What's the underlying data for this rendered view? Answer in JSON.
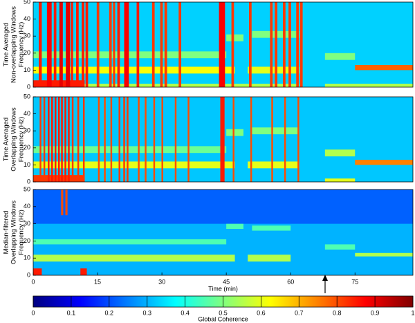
{
  "chart_data": [
    {
      "type": "heatmap",
      "colormap": "jet",
      "ylabel": [
        "Time Averaged",
        "Non-overlapping Windows",
        "Frequency (Hz)"
      ],
      "xlim": [
        0,
        88.5
      ],
      "ylim": [
        0,
        50
      ],
      "yticks": [
        0,
        10,
        20,
        30,
        40,
        50
      ],
      "background": 0.33,
      "patches": [
        {
          "x": [
            0,
            47
          ],
          "y": [
            8,
            12
          ],
          "value": 0.62
        },
        {
          "x": [
            50,
            62
          ],
          "y": [
            8,
            12
          ],
          "value": 0.6
        },
        {
          "x": [
            0,
            45
          ],
          "y": [
            17,
            21
          ],
          "value": 0.5
        },
        {
          "x": [
            0,
            62
          ],
          "y": [
            0,
            2
          ],
          "value": 0.55
        },
        {
          "x": [
            0,
            12
          ],
          "y": [
            0,
            4
          ],
          "value": 0.85
        },
        {
          "x": [
            45,
            49
          ],
          "y": [
            27,
            31
          ],
          "value": 0.5
        },
        {
          "x": [
            51,
            62
          ],
          "y": [
            29,
            33
          ],
          "value": 0.5
        },
        {
          "x": [
            68,
            75
          ],
          "y": [
            16,
            20
          ],
          "value": 0.5
        },
        {
          "x": [
            75,
            88.5
          ],
          "y": [
            10,
            13
          ],
          "value": 0.78
        },
        {
          "x": [
            68,
            88.5
          ],
          "y": [
            0,
            2
          ],
          "value": 0.55
        },
        {
          "x": [
            1.3,
            2
          ],
          "y": [
            0,
            50
          ],
          "value": 0.85
        },
        {
          "x": [
            3.2,
            4.3
          ],
          "y": [
            0,
            50
          ],
          "value": 0.88
        },
        {
          "x": [
            4.8,
            5.4
          ],
          "y": [
            0,
            50
          ],
          "value": 0.85
        },
        {
          "x": [
            6.1,
            6.9
          ],
          "y": [
            0,
            50
          ],
          "value": 0.9
        },
        {
          "x": [
            7.6,
            8.6
          ],
          "y": [
            0,
            50
          ],
          "value": 0.9
        },
        {
          "x": [
            8.8,
            9.3
          ],
          "y": [
            0,
            50
          ],
          "value": 0.85
        },
        {
          "x": [
            10,
            10.6
          ],
          "y": [
            0,
            50
          ],
          "value": 0.85
        },
        {
          "x": [
            11.3,
            11.9
          ],
          "y": [
            0,
            50
          ],
          "value": 0.85
        },
        {
          "x": [
            12.2,
            12.8
          ],
          "y": [
            0,
            50
          ],
          "value": 0.85
        },
        {
          "x": [
            14.8,
            15.4
          ],
          "y": [
            0,
            50
          ],
          "value": 0.82
        },
        {
          "x": [
            17.7,
            18.3
          ],
          "y": [
            0,
            50
          ],
          "value": 0.82
        },
        {
          "x": [
            18.6,
            19.1
          ],
          "y": [
            0,
            50
          ],
          "value": 0.82
        },
        {
          "x": [
            19.6,
            20.2
          ],
          "y": [
            0,
            50
          ],
          "value": 0.85
        },
        {
          "x": [
            21.2,
            22.3
          ],
          "y": [
            0,
            50
          ],
          "value": 0.88
        },
        {
          "x": [
            24.1,
            24.7
          ],
          "y": [
            0,
            50
          ],
          "value": 0.85
        },
        {
          "x": [
            27.7,
            28.3
          ],
          "y": [
            0,
            50
          ],
          "value": 0.82
        },
        {
          "x": [
            29.6,
            30.2
          ],
          "y": [
            0,
            50
          ],
          "value": 0.82
        },
        {
          "x": [
            30.6,
            31.2
          ],
          "y": [
            0,
            50
          ],
          "value": 0.82
        },
        {
          "x": [
            33.9,
            34.5
          ],
          "y": [
            0,
            50
          ],
          "value": 0.82
        },
        {
          "x": [
            43.3,
            44.7
          ],
          "y": [
            0,
            50
          ],
          "value": 0.88
        },
        {
          "x": [
            46.2,
            46.8
          ],
          "y": [
            0,
            50
          ],
          "value": 0.82
        },
        {
          "x": [
            50.3,
            50.9
          ],
          "y": [
            0,
            50
          ],
          "value": 0.82
        },
        {
          "x": [
            55.2,
            55.8
          ],
          "y": [
            0,
            50
          ],
          "value": 0.82
        },
        {
          "x": [
            56.3,
            56.9
          ],
          "y": [
            0,
            50
          ],
          "value": 0.82
        },
        {
          "x": [
            58.2,
            58.8
          ],
          "y": [
            0,
            50
          ],
          "value": 0.82
        },
        {
          "x": [
            59.5,
            60.1
          ],
          "y": [
            0,
            50
          ],
          "value": 0.82
        },
        {
          "x": [
            61.3,
            61.9
          ],
          "y": [
            0,
            50
          ],
          "value": 0.82
        },
        {
          "x": [
            62.2,
            62.8
          ],
          "y": [
            0,
            50
          ],
          "value": 0.82
        }
      ]
    },
    {
      "type": "heatmap",
      "colormap": "jet",
      "ylabel": [
        "Time Averaged",
        "Overlapping Windows",
        "Frequency (Hz)"
      ],
      "xlim": [
        0,
        88.5
      ],
      "ylim": [
        0,
        50
      ],
      "yticks": [
        0,
        10,
        20,
        30,
        40,
        50
      ],
      "background": 0.32,
      "patches": [
        {
          "x": [
            0,
            47
          ],
          "y": [
            8,
            12
          ],
          "value": 0.6
        },
        {
          "x": [
            50,
            62
          ],
          "y": [
            8,
            12
          ],
          "value": 0.6
        },
        {
          "x": [
            0,
            45
          ],
          "y": [
            17,
            21
          ],
          "value": 0.48
        },
        {
          "x": [
            0,
            12
          ],
          "y": [
            0,
            4
          ],
          "value": 0.82
        },
        {
          "x": [
            45,
            49
          ],
          "y": [
            27,
            31
          ],
          "value": 0.5
        },
        {
          "x": [
            51,
            62
          ],
          "y": [
            28,
            32
          ],
          "value": 0.5
        },
        {
          "x": [
            68,
            75
          ],
          "y": [
            15,
            19
          ],
          "value": 0.55
        },
        {
          "x": [
            75,
            88.5
          ],
          "y": [
            10,
            13
          ],
          "value": 0.75
        },
        {
          "x": [
            68,
            75
          ],
          "y": [
            0,
            2
          ],
          "value": 0.6
        },
        {
          "x": [
            1.5,
            1.9
          ],
          "y": [
            0,
            50
          ],
          "value": 0.82
        },
        {
          "x": [
            2.4,
            2.8
          ],
          "y": [
            0,
            50
          ],
          "value": 0.82
        },
        {
          "x": [
            3.4,
            3.8
          ],
          "y": [
            0,
            50
          ],
          "value": 0.85
        },
        {
          "x": [
            4.2,
            4.6
          ],
          "y": [
            0,
            50
          ],
          "value": 0.85
        },
        {
          "x": [
            5,
            5.4
          ],
          "y": [
            0,
            50
          ],
          "value": 0.85
        },
        {
          "x": [
            5.8,
            6.2
          ],
          "y": [
            0,
            50
          ],
          "value": 0.85
        },
        {
          "x": [
            6.5,
            6.9
          ],
          "y": [
            0,
            50
          ],
          "value": 0.85
        },
        {
          "x": [
            7.3,
            7.7
          ],
          "y": [
            0,
            50
          ],
          "value": 0.85
        },
        {
          "x": [
            8.1,
            8.5
          ],
          "y": [
            0,
            50
          ],
          "value": 0.85
        },
        {
          "x": [
            9,
            9.4
          ],
          "y": [
            0,
            50
          ],
          "value": 0.82
        },
        {
          "x": [
            10.3,
            10.7
          ],
          "y": [
            0,
            50
          ],
          "value": 0.82
        },
        {
          "x": [
            11.6,
            12
          ],
          "y": [
            0,
            50
          ],
          "value": 0.82
        },
        {
          "x": [
            15.1,
            15.5
          ],
          "y": [
            0,
            50
          ],
          "value": 0.8
        },
        {
          "x": [
            16.5,
            16.9
          ],
          "y": [
            0,
            50
          ],
          "value": 0.8
        },
        {
          "x": [
            18,
            18.4
          ],
          "y": [
            0,
            50
          ],
          "value": 0.8
        },
        {
          "x": [
            19.9,
            20.3
          ],
          "y": [
            0,
            50
          ],
          "value": 0.82
        },
        {
          "x": [
            21,
            21.4
          ],
          "y": [
            0,
            50
          ],
          "value": 0.82
        },
        {
          "x": [
            21.8,
            22.2
          ],
          "y": [
            0,
            50
          ],
          "value": 0.82
        },
        {
          "x": [
            24.4,
            24.8
          ],
          "y": [
            0,
            50
          ],
          "value": 0.8
        },
        {
          "x": [
            26,
            26.4
          ],
          "y": [
            0,
            50
          ],
          "value": 0.8
        },
        {
          "x": [
            28,
            28.4
          ],
          "y": [
            0,
            50
          ],
          "value": 0.8
        },
        {
          "x": [
            29.9,
            30.3
          ],
          "y": [
            0,
            50
          ],
          "value": 0.8
        },
        {
          "x": [
            33,
            33.4
          ],
          "y": [
            0,
            50
          ],
          "value": 0.8
        },
        {
          "x": [
            36,
            36.4
          ],
          "y": [
            0,
            50
          ],
          "value": 0.8
        },
        {
          "x": [
            43.6,
            44.6
          ],
          "y": [
            0,
            50
          ],
          "value": 0.85
        },
        {
          "x": [
            46.5,
            46.9
          ],
          "y": [
            0,
            50
          ],
          "value": 0.8
        },
        {
          "x": [
            50.6,
            51
          ],
          "y": [
            0,
            50
          ],
          "value": 0.8
        },
        {
          "x": [
            55.5,
            55.9
          ],
          "y": [
            0,
            50
          ],
          "value": 0.8
        },
        {
          "x": [
            58.5,
            58.9
          ],
          "y": [
            0,
            50
          ],
          "value": 0.8
        },
        {
          "x": [
            61.6,
            62
          ],
          "y": [
            0,
            50
          ],
          "value": 0.8
        }
      ]
    },
    {
      "type": "heatmap",
      "colormap": "jet",
      "ylabel": [
        "Median-filtered",
        "Overlapping Windows",
        "Frequency (Hz)"
      ],
      "xlabel": "Time (min)",
      "xlim": [
        0,
        88.5
      ],
      "ylim": [
        0,
        50
      ],
      "xticks": [
        0,
        15,
        30,
        45,
        60,
        75
      ],
      "yticks": [
        0,
        10,
        20,
        30,
        40,
        50
      ],
      "background": 0.3,
      "patches": [
        {
          "x": [
            0,
            88.5
          ],
          "y": [
            30,
            50
          ],
          "value": 0.22
        },
        {
          "x": [
            0,
            47
          ],
          "y": [
            8,
            12
          ],
          "value": 0.55
        },
        {
          "x": [
            50,
            60
          ],
          "y": [
            8,
            12
          ],
          "value": 0.55
        },
        {
          "x": [
            0,
            45
          ],
          "y": [
            18,
            21
          ],
          "value": 0.45
        },
        {
          "x": [
            45,
            49
          ],
          "y": [
            27,
            30
          ],
          "value": 0.45
        },
        {
          "x": [
            51,
            60
          ],
          "y": [
            26,
            29
          ],
          "value": 0.45
        },
        {
          "x": [
            68,
            75
          ],
          "y": [
            15,
            18
          ],
          "value": 0.45
        },
        {
          "x": [
            75,
            88.5
          ],
          "y": [
            11,
            13
          ],
          "value": 0.55
        },
        {
          "x": [
            11,
            12.5
          ],
          "y": [
            0,
            4
          ],
          "value": 0.85
        },
        {
          "x": [
            0,
            2
          ],
          "y": [
            0,
            4
          ],
          "value": 0.85
        },
        {
          "x": [
            6.5,
            7
          ],
          "y": [
            35,
            50
          ],
          "value": 0.8
        },
        {
          "x": [
            7.5,
            8
          ],
          "y": [
            35,
            50
          ],
          "value": 0.8
        }
      ]
    },
    {
      "type": "colorbar",
      "colormap": "jet",
      "label": "Global Coherence",
      "lim": [
        0,
        1
      ],
      "ticks": [
        0,
        0.1,
        0.2,
        0.3,
        0.4,
        0.5,
        0.6,
        0.7,
        0.8,
        0.9,
        1
      ]
    }
  ]
}
